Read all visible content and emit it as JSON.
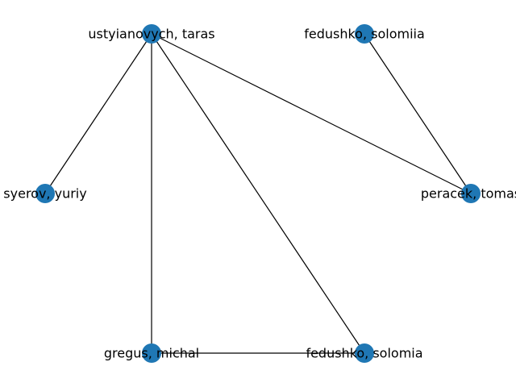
{
  "graph": {
    "type": "network",
    "node_color": "#1f77b4",
    "edge_color": "#000000",
    "nodes": [
      {
        "id": "ustyianovych",
        "label": "ustyianovych, taras"
      },
      {
        "id": "fedushko_solomiia",
        "label": "fedushko, solomiia"
      },
      {
        "id": "syerov",
        "label": "syerov, yuriy"
      },
      {
        "id": "peracek",
        "label": "peracek, tomas"
      },
      {
        "id": "gregus",
        "label": "gregus, michal"
      },
      {
        "id": "fedushko_solomia",
        "label": "fedushko, solomia"
      }
    ],
    "edges": [
      {
        "source": "ustyianovych",
        "target": "syerov"
      },
      {
        "source": "ustyianovych",
        "target": "gregus"
      },
      {
        "source": "ustyianovych",
        "target": "fedushko_solomia"
      },
      {
        "source": "ustyianovych",
        "target": "peracek"
      },
      {
        "source": "fedushko_solomiia",
        "target": "peracek"
      },
      {
        "source": "gregus",
        "target": "fedushko_solomia"
      }
    ]
  }
}
